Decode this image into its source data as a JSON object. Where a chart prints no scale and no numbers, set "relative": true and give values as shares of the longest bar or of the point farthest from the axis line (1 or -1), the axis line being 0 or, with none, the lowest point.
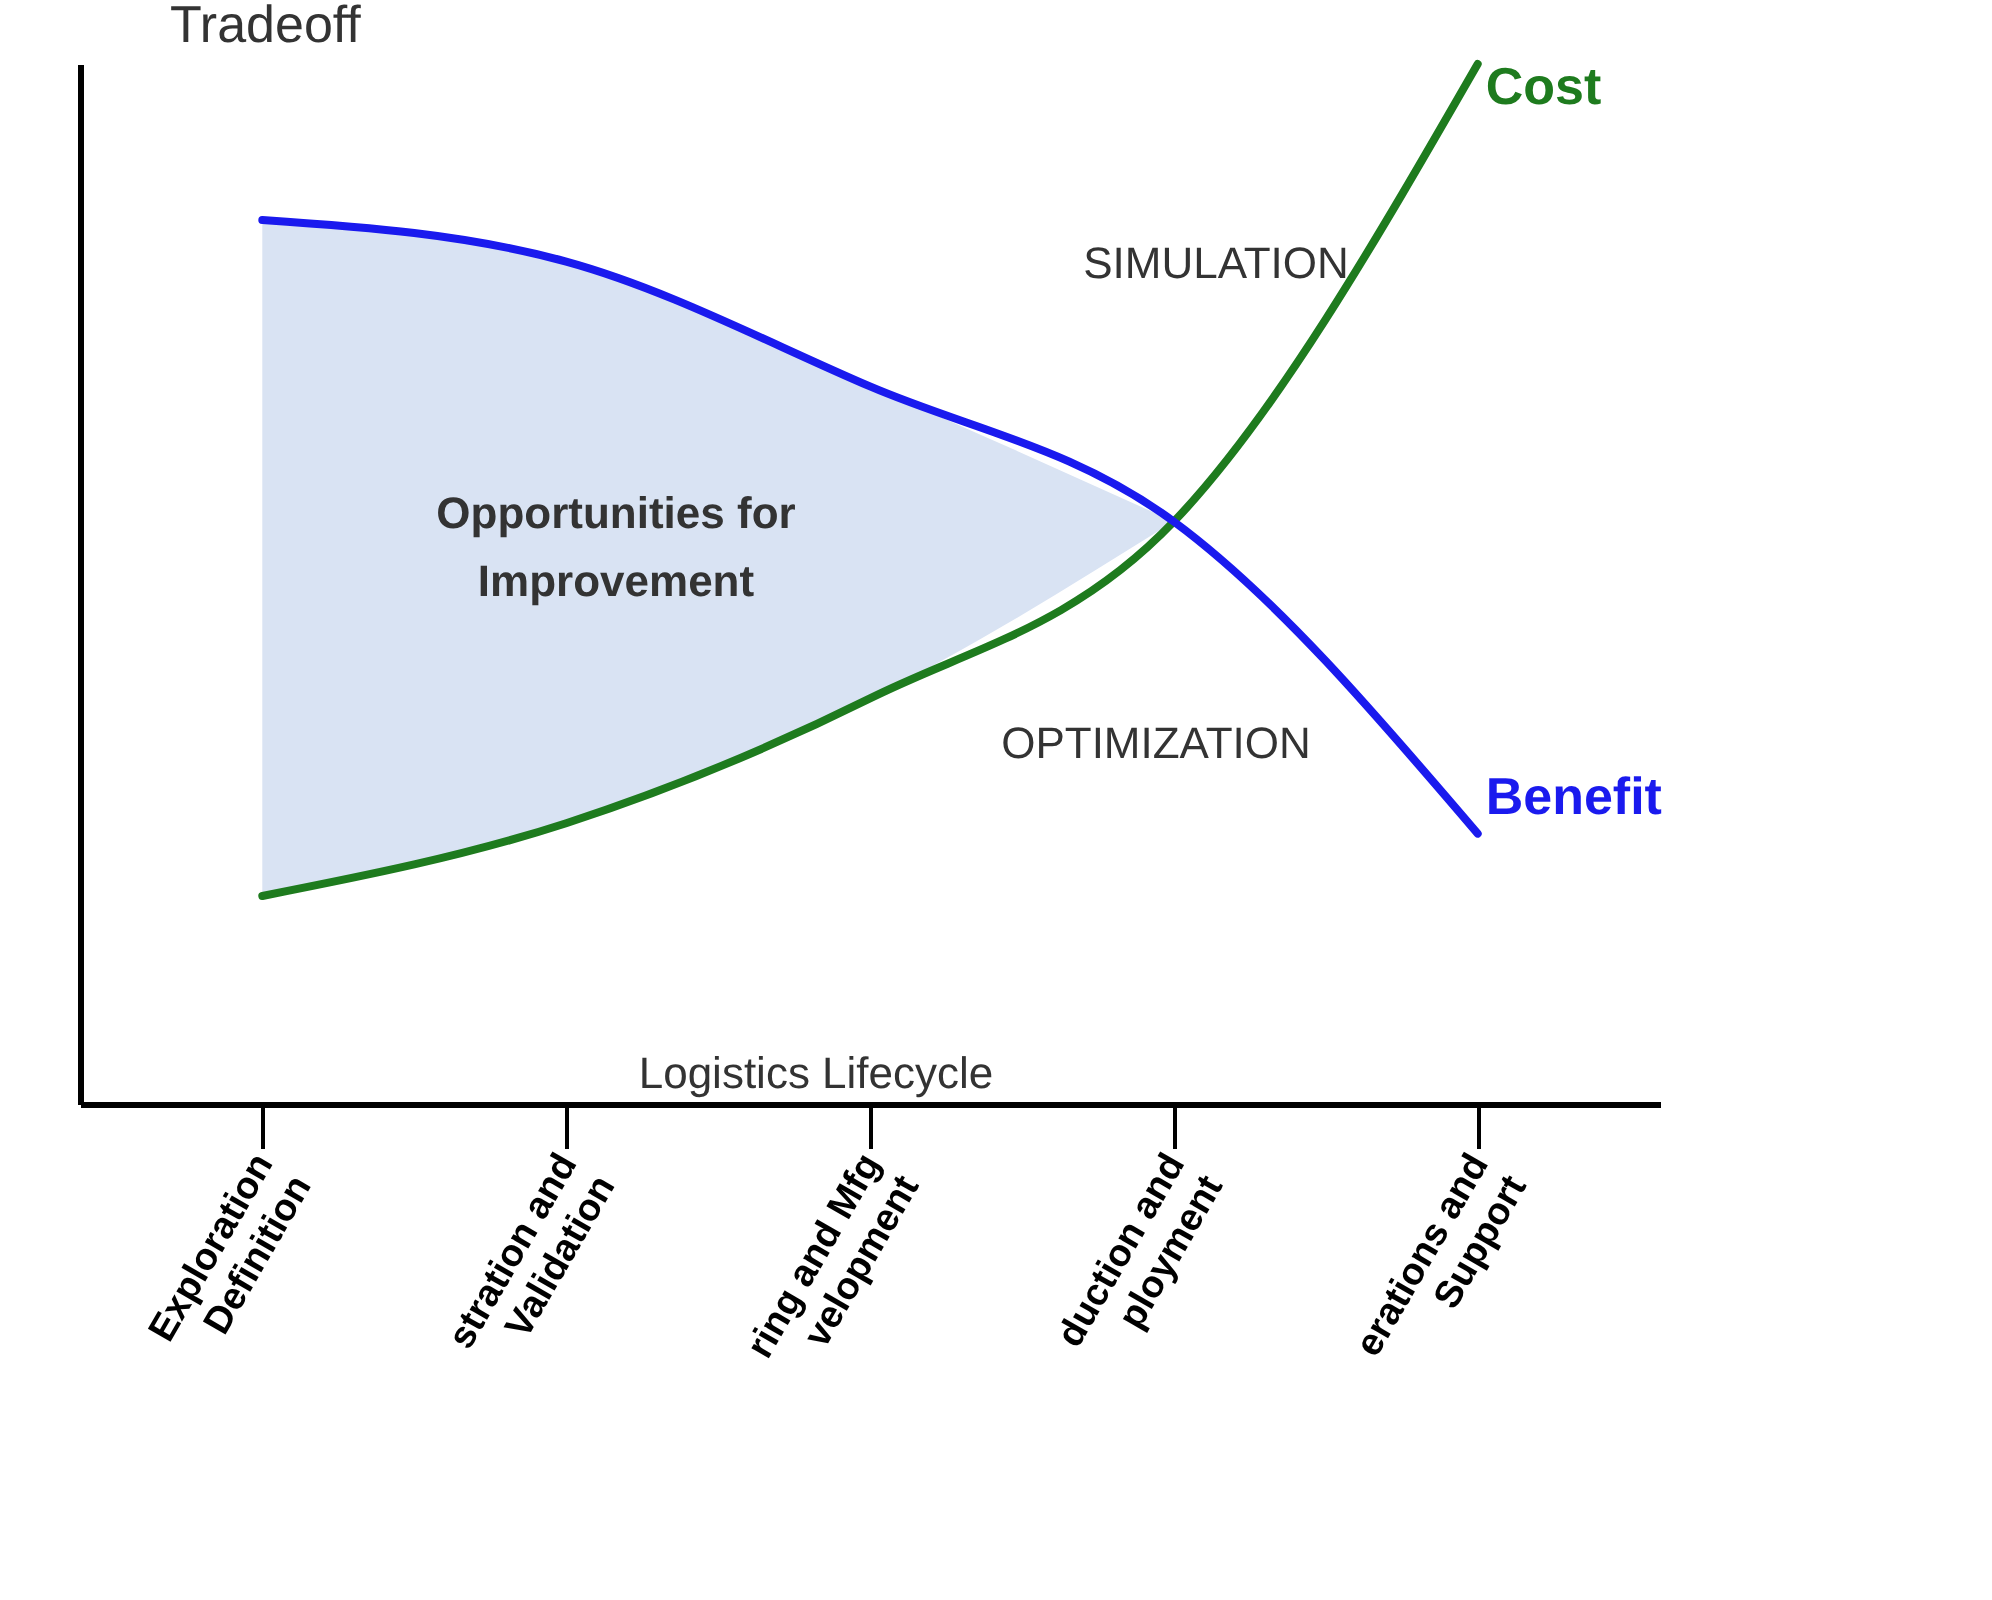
{
  "chart_data": {
    "type": "line",
    "title": "Tradeoff",
    "relative": true,
    "categories": [
      "Exploration Definition",
      "stration and Validation",
      "ring and Mfg velopment",
      "duction and ployment",
      "erations and Support"
    ],
    "series": [
      {
        "type": "area",
        "color": "#d9e3f3",
        "values": [
          0.85,
          0.81,
          0.69,
          0.56,
          null
        ]
      },
      {
        "name": "Cost",
        "color": "#1e7b1e",
        "values": [
          0.2,
          0.27,
          0.39,
          0.56,
          1
        ]
      },
      {
        "name": "Benefit",
        "color": "#1a1aee",
        "values": [
          0.85,
          0.81,
          0.69,
          0.56,
          0.26
        ]
      }
    ],
    "annotations": [
      "SIMULATION",
      "OPTIMIZATION",
      "Opportunities for Improvement",
      "Logistics Lifecycle"
    ]
  }
}
